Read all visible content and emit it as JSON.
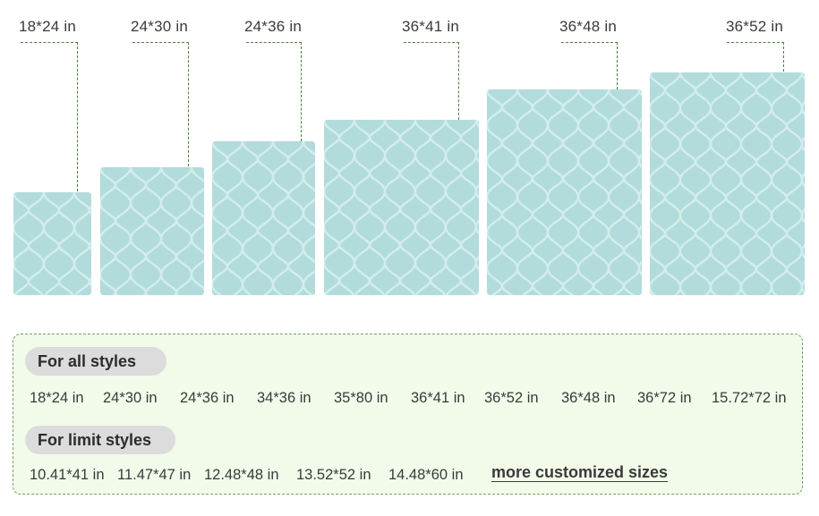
{
  "rug_sizes": [
    {
      "label": "18*24 in"
    },
    {
      "label": "24*30 in"
    },
    {
      "label": "24*36 in"
    },
    {
      "label": "36*41 in"
    },
    {
      "label": "36*48 in"
    },
    {
      "label": "36*52 in"
    }
  ],
  "colors": {
    "rug_fill": "#b2dcdc",
    "rug_pattern": "#d6eeee",
    "leader_line": "#4e7e3e",
    "panel_bg": "#f2fbea",
    "pill_bg": "#dcdcdc"
  },
  "panel": {
    "all_styles": {
      "title": "For all styles",
      "sizes": [
        "18*24 in",
        "24*30 in",
        "24*36 in",
        "34*36 in",
        "35*80 in",
        "36*41 in",
        "36*52 in",
        "36*48 in",
        "36*72 in",
        "15.72*72 in"
      ]
    },
    "limit_styles": {
      "title": "For limit styles",
      "sizes": [
        "10.41*41 in",
        "11.47*47 in",
        "12.48*48 in",
        "13.52*52 in",
        "14.48*60 in"
      ]
    },
    "more_link": "more customized sizes"
  }
}
